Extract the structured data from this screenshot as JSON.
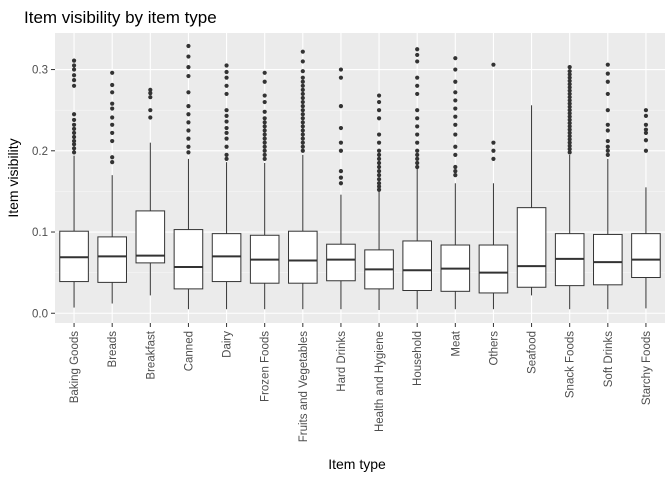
{
  "chart_data": {
    "type": "boxplot",
    "title": "Item visibility by item type",
    "xlabel": "Item type",
    "ylabel": "Item visibility",
    "ylim": [
      -0.012,
      0.345
    ],
    "yticks": [
      0.0,
      0.1,
      0.2,
      0.3
    ],
    "ytick_labels": [
      "0.0",
      "0.1",
      "0.2",
      "0.3"
    ],
    "grid": true,
    "theme": {
      "panel_bg": "#ebebeb",
      "grid_major": "#ffffff",
      "box_fill": "#ffffff",
      "box_stroke": "#333333",
      "outlier_color": "#333333"
    },
    "categories": [
      "Baking Goods",
      "Breads",
      "Breakfast",
      "Canned",
      "Dairy",
      "Frozen Foods",
      "Fruits and Vegetables",
      "Hard Drinks",
      "Health and Hygiene",
      "Household",
      "Meat",
      "Others",
      "Seafood",
      "Snack Foods",
      "Soft Drinks",
      "Starchy Foods"
    ],
    "boxes": [
      {
        "min": 0.007,
        "q1": 0.039,
        "median": 0.069,
        "q3": 0.101,
        "max": 0.194,
        "outliers": [
          0.198,
          0.203,
          0.208,
          0.212,
          0.217,
          0.222,
          0.227,
          0.232,
          0.238,
          0.245,
          0.28,
          0.287,
          0.293,
          0.3,
          0.305,
          0.311
        ]
      },
      {
        "min": 0.012,
        "q1": 0.038,
        "median": 0.07,
        "q3": 0.094,
        "max": 0.17,
        "outliers": [
          0.186,
          0.192,
          0.212,
          0.222,
          0.232,
          0.241,
          0.252,
          0.258,
          0.272,
          0.281,
          0.296
        ]
      },
      {
        "min": 0.022,
        "q1": 0.062,
        "median": 0.071,
        "q3": 0.126,
        "max": 0.21,
        "outliers": [
          0.241,
          0.25,
          0.266,
          0.271,
          0.275
        ]
      },
      {
        "min": 0.005,
        "q1": 0.03,
        "median": 0.057,
        "q3": 0.103,
        "max": 0.19,
        "outliers": [
          0.198,
          0.205,
          0.215,
          0.225,
          0.235,
          0.245,
          0.255,
          0.272,
          0.292,
          0.303,
          0.316,
          0.329
        ]
      },
      {
        "min": 0.005,
        "q1": 0.039,
        "median": 0.07,
        "q3": 0.098,
        "max": 0.186,
        "outliers": [
          0.19,
          0.195,
          0.205,
          0.215,
          0.222,
          0.228,
          0.236,
          0.243,
          0.25,
          0.27,
          0.28,
          0.29,
          0.297,
          0.305
        ]
      },
      {
        "min": 0.005,
        "q1": 0.037,
        "median": 0.066,
        "q3": 0.096,
        "max": 0.185,
        "outliers": [
          0.19,
          0.195,
          0.2,
          0.205,
          0.21,
          0.215,
          0.22,
          0.225,
          0.23,
          0.235,
          0.24,
          0.248,
          0.26,
          0.268,
          0.285,
          0.296
        ]
      },
      {
        "min": 0.005,
        "q1": 0.037,
        "median": 0.065,
        "q3": 0.101,
        "max": 0.195,
        "outliers": [
          0.2,
          0.205,
          0.21,
          0.215,
          0.22,
          0.225,
          0.23,
          0.235,
          0.24,
          0.245,
          0.25,
          0.255,
          0.26,
          0.265,
          0.27,
          0.275,
          0.28,
          0.285,
          0.29,
          0.298,
          0.31,
          0.322
        ]
      },
      {
        "min": 0.005,
        "q1": 0.04,
        "median": 0.066,
        "q3": 0.085,
        "max": 0.146,
        "outliers": [
          0.16,
          0.167,
          0.175,
          0.2,
          0.21,
          0.228,
          0.255,
          0.29,
          0.3
        ]
      },
      {
        "min": 0.004,
        "q1": 0.03,
        "median": 0.054,
        "q3": 0.078,
        "max": 0.15,
        "outliers": [
          0.152,
          0.156,
          0.16,
          0.165,
          0.17,
          0.175,
          0.18,
          0.185,
          0.19,
          0.195,
          0.2,
          0.21,
          0.22,
          0.24,
          0.25,
          0.26,
          0.268
        ]
      },
      {
        "min": 0.005,
        "q1": 0.028,
        "median": 0.053,
        "q3": 0.089,
        "max": 0.178,
        "outliers": [
          0.18,
          0.185,
          0.19,
          0.195,
          0.2,
          0.21,
          0.22,
          0.23,
          0.24,
          0.25,
          0.27,
          0.28,
          0.29,
          0.31,
          0.318,
          0.325
        ]
      },
      {
        "min": 0.005,
        "q1": 0.027,
        "median": 0.055,
        "q3": 0.084,
        "max": 0.16,
        "outliers": [
          0.17,
          0.175,
          0.18,
          0.195,
          0.205,
          0.22,
          0.232,
          0.242,
          0.252,
          0.262,
          0.272,
          0.285,
          0.3,
          0.314
        ]
      },
      {
        "min": 0.005,
        "q1": 0.025,
        "median": 0.05,
        "q3": 0.084,
        "max": 0.16,
        "outliers": [
          0.19,
          0.2,
          0.21,
          0.306
        ]
      },
      {
        "min": 0.022,
        "q1": 0.032,
        "median": 0.058,
        "q3": 0.13,
        "max": 0.256,
        "outliers": []
      },
      {
        "min": 0.005,
        "q1": 0.034,
        "median": 0.067,
        "q3": 0.098,
        "max": 0.195,
        "outliers": [
          0.198,
          0.202,
          0.206,
          0.21,
          0.214,
          0.218,
          0.222,
          0.226,
          0.23,
          0.234,
          0.238,
          0.242,
          0.246,
          0.25,
          0.254,
          0.258,
          0.262,
          0.266,
          0.27,
          0.274,
          0.278,
          0.282,
          0.286,
          0.29,
          0.294,
          0.298,
          0.303
        ]
      },
      {
        "min": 0.005,
        "q1": 0.035,
        "median": 0.063,
        "q3": 0.097,
        "max": 0.19,
        "outliers": [
          0.195,
          0.2,
          0.205,
          0.212,
          0.225,
          0.232,
          0.25,
          0.27,
          0.285,
          0.295,
          0.306
        ]
      },
      {
        "min": 0.006,
        "q1": 0.044,
        "median": 0.066,
        "q3": 0.098,
        "max": 0.155,
        "outliers": [
          0.2,
          0.213,
          0.222,
          0.226,
          0.232,
          0.243,
          0.25
        ]
      }
    ]
  }
}
